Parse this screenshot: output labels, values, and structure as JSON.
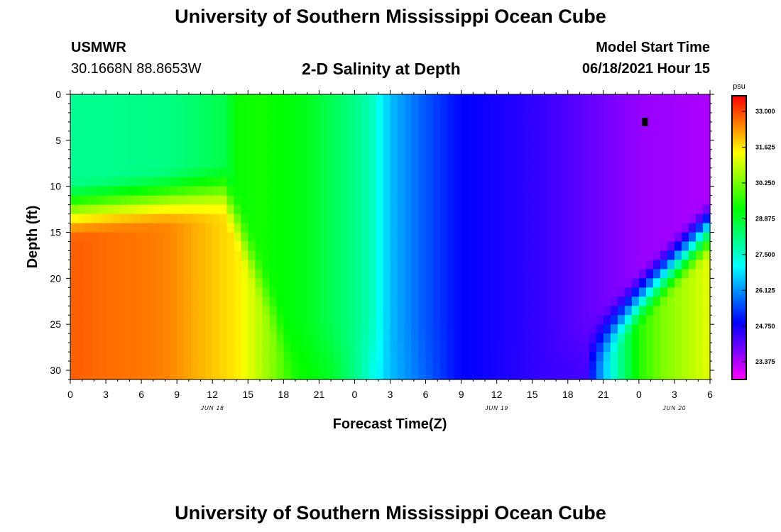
{
  "header": {
    "main_title": "University of Southern Mississippi Ocean Cube",
    "station": "USMWR",
    "coords": "30.1668N  88.8653W",
    "plot_title": "2-D Salinity at Depth",
    "model_label": "Model Start Time",
    "model_time": "06/18/2021 Hour 15"
  },
  "footer": {
    "title": "University of Southern Mississippi Ocean Cube"
  },
  "chart_data": {
    "type": "heatmap",
    "title": "2-D Salinity at Depth",
    "xlabel": "Forecast Time(Z)",
    "ylabel": "Depth (ft)",
    "x_range_hours": [
      0,
      54
    ],
    "y_range_ft": [
      0,
      31
    ],
    "x_ticks": [
      {
        "h": 0,
        "label": "0"
      },
      {
        "h": 3,
        "label": "3"
      },
      {
        "h": 6,
        "label": "6"
      },
      {
        "h": 9,
        "label": "9"
      },
      {
        "h": 12,
        "label": "12"
      },
      {
        "h": 15,
        "label": "15"
      },
      {
        "h": 18,
        "label": "18"
      },
      {
        "h": 21,
        "label": "21"
      },
      {
        "h": 24,
        "label": "0"
      },
      {
        "h": 27,
        "label": "3"
      },
      {
        "h": 30,
        "label": "6"
      },
      {
        "h": 33,
        "label": "9"
      },
      {
        "h": 36,
        "label": "12"
      },
      {
        "h": 39,
        "label": "15"
      },
      {
        "h": 42,
        "label": "18"
      },
      {
        "h": 45,
        "label": "21"
      },
      {
        "h": 48,
        "label": "0"
      },
      {
        "h": 51,
        "label": "3"
      },
      {
        "h": 54,
        "label": "6"
      }
    ],
    "date_labels": [
      {
        "h": 12,
        "label": "JUN 18"
      },
      {
        "h": 36,
        "label": "JUN 19"
      },
      {
        "h": 51,
        "label": "JUN 20"
      }
    ],
    "y_ticks": [
      0,
      5,
      10,
      15,
      20,
      25,
      30
    ],
    "colorbar": {
      "unit": "psu",
      "min": 22.7,
      "max": 33.6,
      "labels": [
        "33.000",
        "31.625",
        "30.250",
        "28.875",
        "27.500",
        "26.125",
        "24.750",
        "23.375"
      ]
    },
    "marker": {
      "hour": 48.5,
      "depth_ft": 3
    },
    "salinity_surface_profile": [
      {
        "hour": 0,
        "psu": 28.0
      },
      {
        "hour": 8,
        "psu": 28.1
      },
      {
        "hour": 13,
        "psu": 28.6
      },
      {
        "hour": 14,
        "psu": 29.3
      },
      {
        "hour": 16,
        "psu": 29.4
      },
      {
        "hour": 20,
        "psu": 29.0
      },
      {
        "hour": 24,
        "psu": 28.1
      },
      {
        "hour": 25.5,
        "psu": 27.6
      },
      {
        "hour": 27,
        "psu": 26.5
      },
      {
        "hour": 28,
        "psu": 26.2
      },
      {
        "hour": 30,
        "psu": 25.6
      },
      {
        "hour": 33,
        "psu": 24.9
      },
      {
        "hour": 36,
        "psu": 24.7
      },
      {
        "hour": 40,
        "psu": 24.4
      },
      {
        "hour": 44,
        "psu": 24.0
      },
      {
        "hour": 48,
        "psu": 23.6
      },
      {
        "hour": 54,
        "psu": 23.4
      }
    ],
    "salinity_bottom_profile": [
      {
        "hour": 0,
        "psu": 32.8
      },
      {
        "hour": 8,
        "psu": 32.5
      },
      {
        "hour": 14,
        "psu": 31.6
      },
      {
        "hour": 17,
        "psu": 30.4
      },
      {
        "hour": 19,
        "psu": 29.4
      },
      {
        "hour": 22,
        "psu": 28.9
      },
      {
        "hour": 24,
        "psu": 28.1
      },
      {
        "hour": 27,
        "psu": 26.5
      },
      {
        "hour": 33,
        "psu": 24.9
      },
      {
        "hour": 40,
        "psu": 24.4
      },
      {
        "hour": 43.5,
        "psu": 24.3
      },
      {
        "hour": 44.5,
        "psu": 25.8
      },
      {
        "hour": 46,
        "psu": 27.6
      },
      {
        "hour": 48,
        "psu": 29.5
      },
      {
        "hour": 50,
        "psu": 30.3
      },
      {
        "hour": 54,
        "psu": 31.2
      }
    ]
  }
}
